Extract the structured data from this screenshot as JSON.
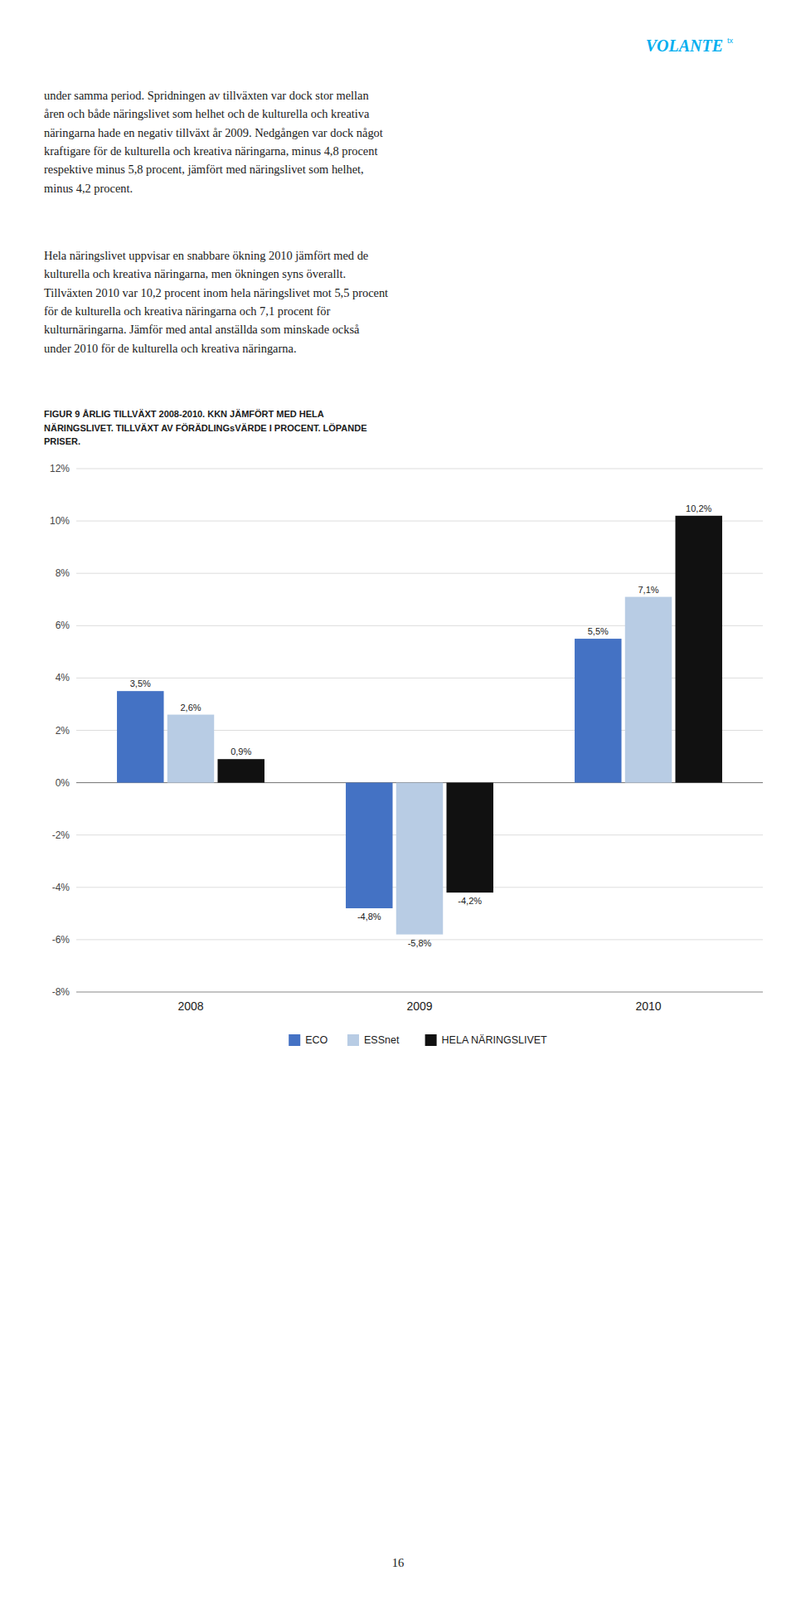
{
  "chart_data": {
    "type": "bar",
    "title": "FIGUR 9 ÅRLIG TILLVÄXT 2008-2010. KKN JÄMFÖRT MED HELA\nNÄRINGSLIVET. TILLVÄXT AV FÖRÄDLINGsVÄRDE I PROCENT. LÖPANDE\nPRISER.",
    "categories": [
      "2008",
      "2009",
      "2010"
    ],
    "series": [
      {
        "name": "ECO",
        "color": "#4472C4",
        "values": [
          3.5,
          -4.8,
          5.5
        ],
        "value_labels": [
          "3,5%",
          "-4,8%",
          "5,5%"
        ]
      },
      {
        "name": "ESSnet",
        "color": "#B8CCE4",
        "values": [
          2.6,
          -5.8,
          7.1
        ],
        "value_labels": [
          "2,6%",
          "-5,8%",
          "7,1%"
        ]
      },
      {
        "name": "HELA NÄRINGSLIVET",
        "color": "#111111",
        "values": [
          0.9,
          -4.2,
          10.2
        ],
        "value_labels": [
          "0,9%",
          "-4,2%",
          "10,2%"
        ]
      }
    ],
    "ylim": [
      -8,
      12
    ],
    "yticks": [
      {
        "value": -8,
        "label": "-8%"
      },
      {
        "value": -6,
        "label": "-6%"
      },
      {
        "value": -4,
        "label": "-4%"
      },
      {
        "value": -2,
        "label": "-2%"
      },
      {
        "value": 0,
        "label": "0%"
      },
      {
        "value": 2,
        "label": "2%"
      },
      {
        "value": 4,
        "label": "4%"
      },
      {
        "value": 6,
        "label": "6%"
      },
      {
        "value": 8,
        "label": "8%"
      },
      {
        "value": 10,
        "label": "10%"
      },
      {
        "value": 12,
        "label": "12%"
      }
    ],
    "grid": true,
    "legend": "bottom",
    "data_labels": true
  },
  "text_blocks": [
    [
      "under samma period. Spridningen av tillväxten var dock stor mellan",
      "åren och både näringslivet som helhet och de kulturella och kreativa",
      "näringarna hade en negativ tillväxt år 2009. Nedgången var dock något",
      "kraftigare för de kulturella och kreativa näringarna, minus 4,8 procent",
      "respektive minus 5,8 procent, jämfört med näringslivet som helhet,",
      "minus 4,2 procent."
    ],
    [
      "Hela näringslivet uppvisar en snabbare ökning 2010 jämfört med de",
      "kulturella och kreativa näringarna, men ökningen syns överallt.",
      "Tillväxten 2010 var 10,2 procent inom hela näringslivet mot 5,5 procent",
      "för de kulturella och kreativa näringarna och 7,1 procent för",
      "kulturnäringarna. Jämför med antal anställda som minskade också",
      "under 2010 för de kulturella och kreativa näringarna."
    ]
  ],
  "logo": {
    "text": "VOLANTE",
    "sup": "tx",
    "color": "#00AEEF"
  },
  "page_number": "16"
}
